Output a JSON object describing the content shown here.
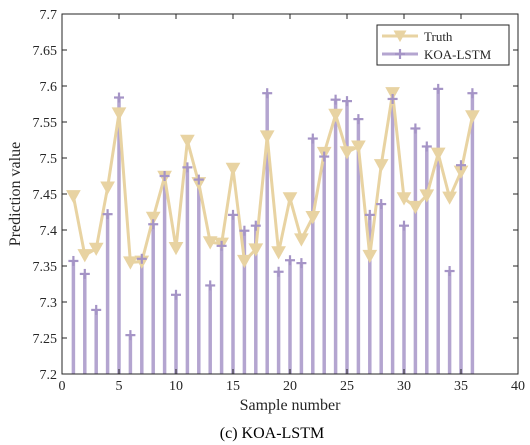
{
  "chart_data": {
    "type": "line",
    "caption": "(c) KOA-LSTM",
    "xlabel": "Sample number",
    "ylabel": "Prediction value",
    "xlim": [
      0,
      40
    ],
    "ylim": [
      7.2,
      7.7
    ],
    "xticks": [
      0,
      5,
      10,
      15,
      20,
      25,
      30,
      35,
      40
    ],
    "yticks": [
      7.2,
      7.25,
      7.3,
      7.35,
      7.4,
      7.45,
      7.5,
      7.55,
      7.6,
      7.65,
      7.7
    ],
    "grid": false,
    "legend_position": "top-right",
    "x": [
      1,
      2,
      3,
      4,
      5,
      6,
      7,
      8,
      9,
      10,
      11,
      12,
      13,
      14,
      15,
      16,
      17,
      18,
      19,
      20,
      21,
      22,
      23,
      24,
      25,
      26,
      27,
      28,
      29,
      30,
      31,
      32,
      33,
      34,
      35,
      36
    ],
    "series": [
      {
        "name": "Truth",
        "style": "line-triangle-down",
        "color": "#e8d3a2",
        "values": [
          7.447,
          7.365,
          7.374,
          7.459,
          7.562,
          7.355,
          7.356,
          7.417,
          7.474,
          7.375,
          7.524,
          7.465,
          7.383,
          7.381,
          7.485,
          7.357,
          7.373,
          7.53,
          7.369,
          7.444,
          7.387,
          7.418,
          7.507,
          7.56,
          7.508,
          7.516,
          7.364,
          7.49,
          7.59,
          7.444,
          7.432,
          7.448,
          7.506,
          7.445,
          7.481,
          7.558
        ]
      },
      {
        "name": "KOA-LSTM",
        "style": "stem-plus",
        "color": "#b4a5d0",
        "values": [
          7.357,
          7.339,
          7.289,
          7.422,
          7.584,
          7.254,
          7.36,
          7.408,
          7.475,
          7.31,
          7.487,
          7.47,
          7.323,
          7.378,
          7.421,
          7.399,
          7.406,
          7.59,
          7.342,
          7.358,
          7.354,
          7.527,
          7.502,
          7.581,
          7.579,
          7.554,
          7.421,
          7.436,
          7.582,
          7.406,
          7.541,
          7.516,
          7.596,
          7.343,
          7.49,
          7.59
        ]
      }
    ]
  }
}
